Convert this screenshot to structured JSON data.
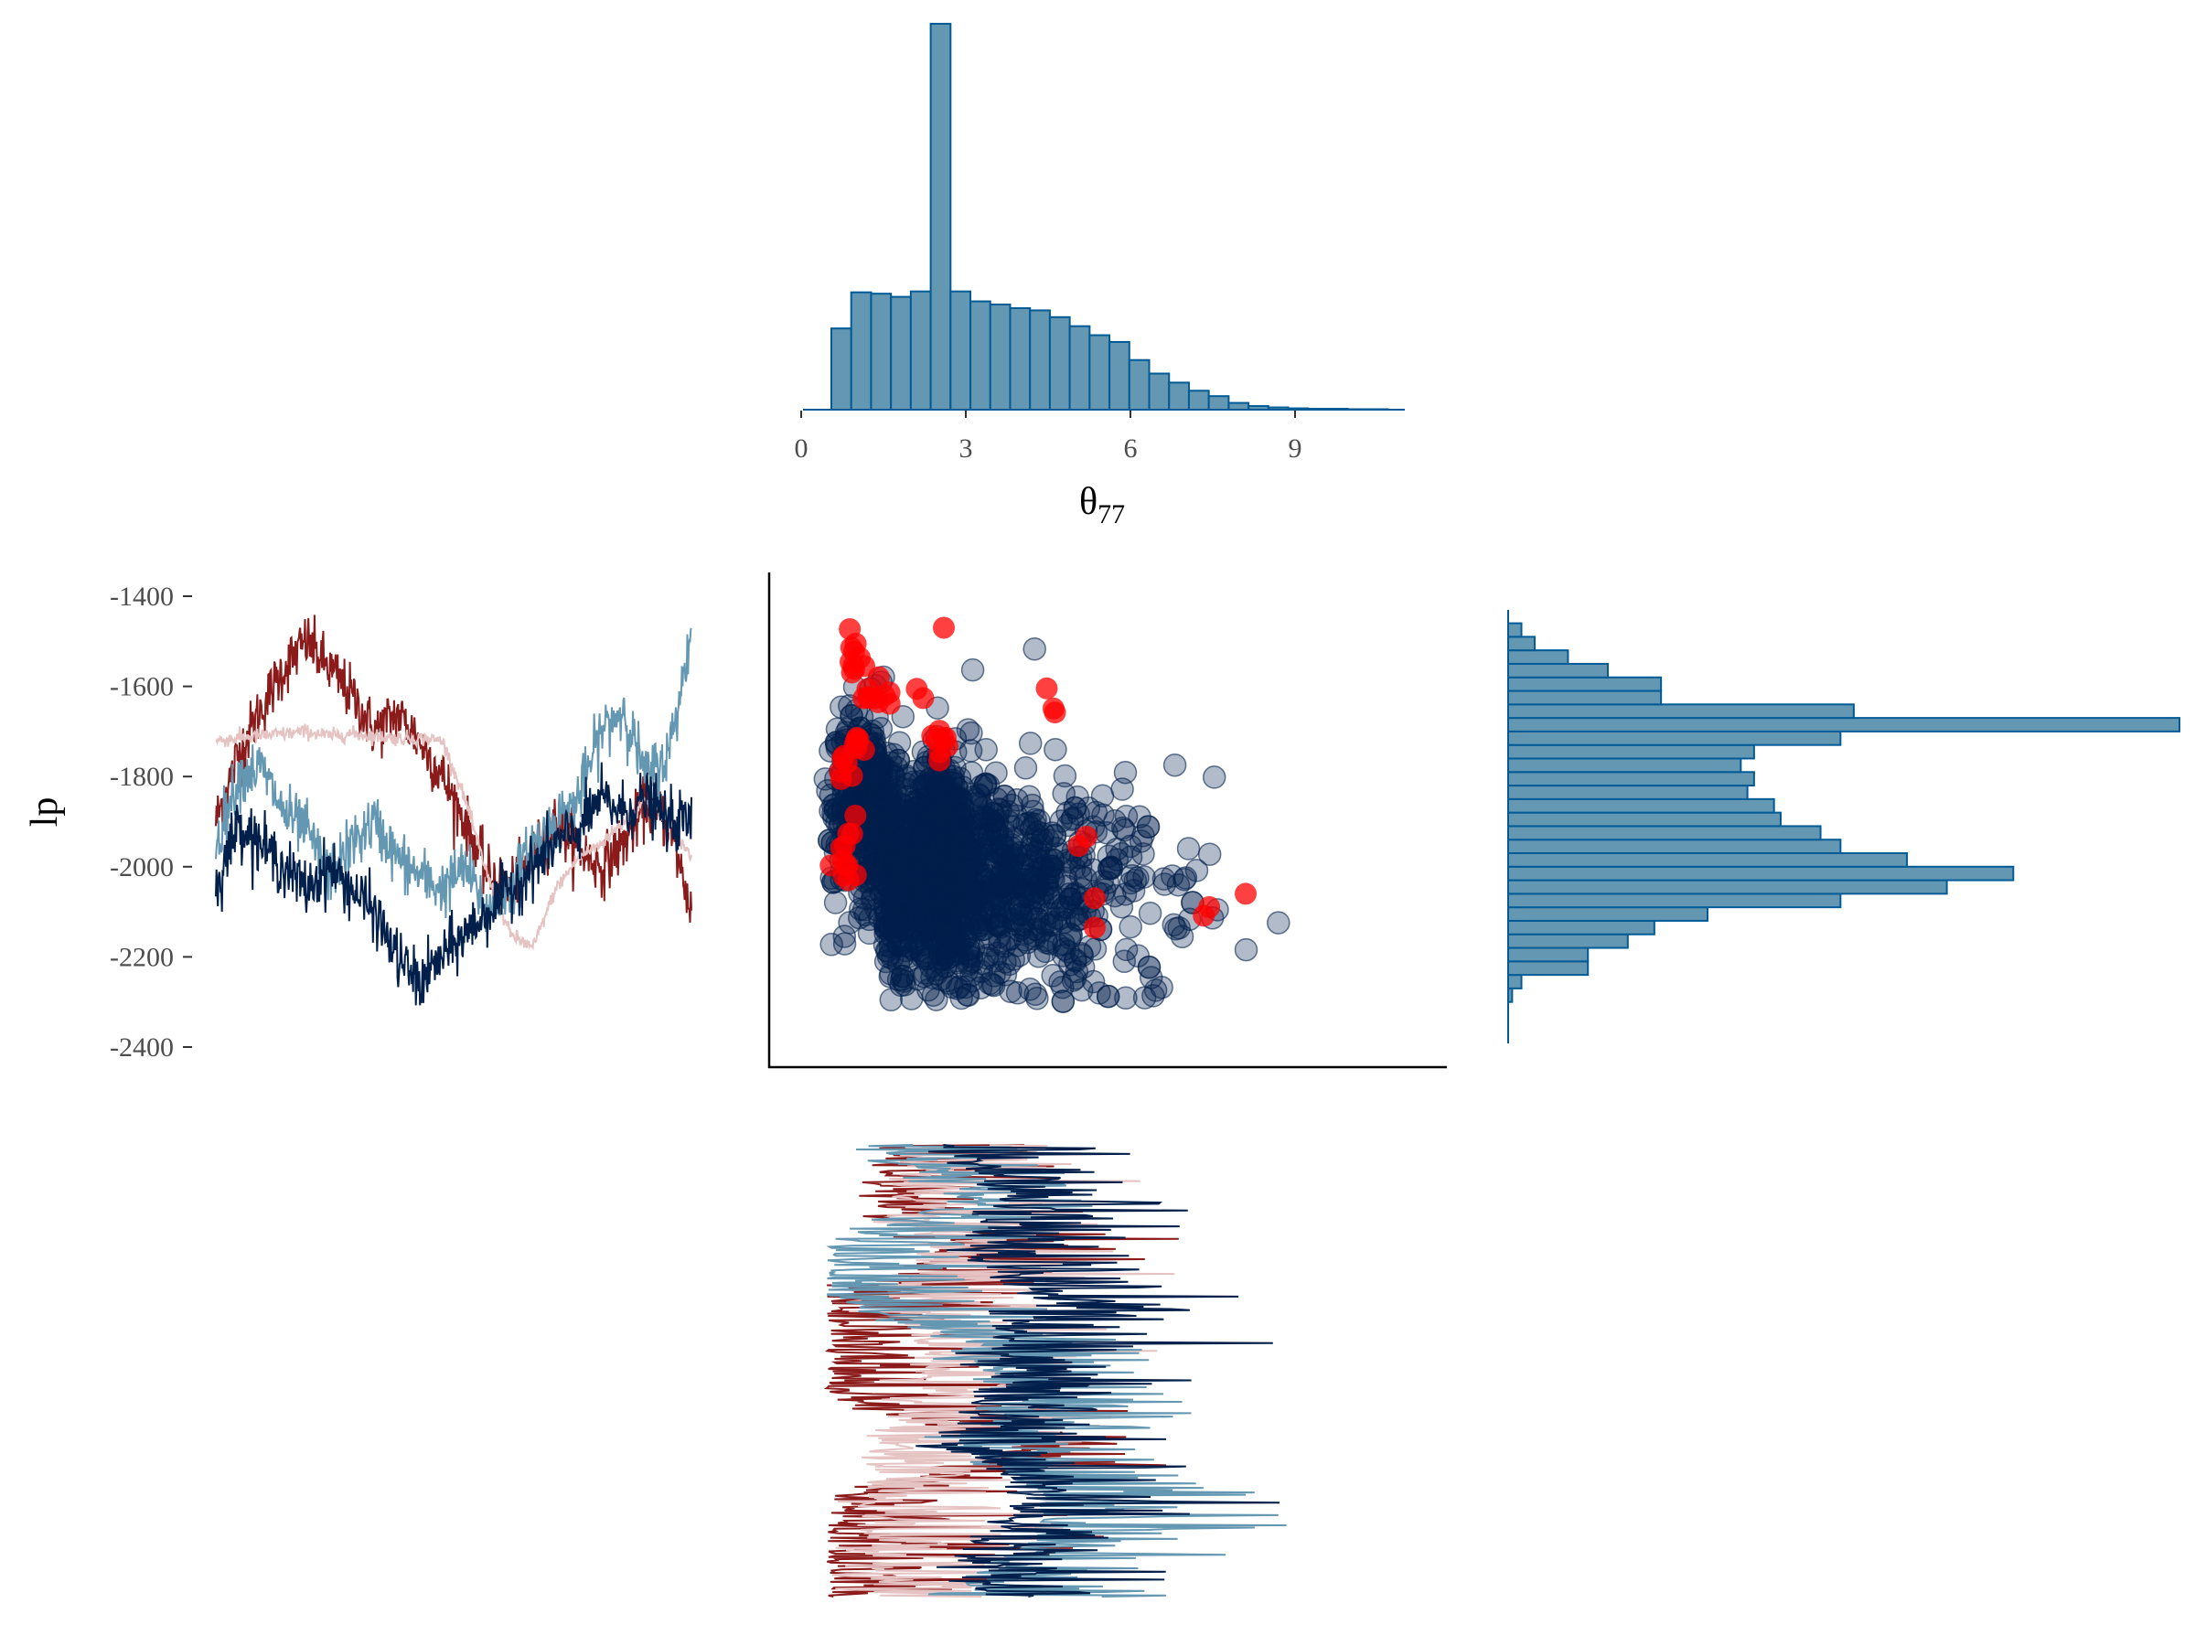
{
  "colors": {
    "hist_fill": "#6497b1",
    "hist_stroke": "#005b96",
    "scatter_point": "#011f4b",
    "divergent_point": "#ff0000",
    "chain_colors": [
      "#8b1a1a",
      "#e6c3c3",
      "#6497b1",
      "#011f4b"
    ],
    "axis_text": "#4d4d4d"
  },
  "chart_data": [
    {
      "id": "theta-histogram",
      "type": "bar",
      "xlabel_main": "θ",
      "xlabel_sub": "77",
      "xticks": [
        "0",
        "3",
        "6",
        "9"
      ],
      "xtick_values": [
        0,
        3,
        6,
        9
      ],
      "xlim": [
        0,
        10.8
      ],
      "bin_width": 0.362,
      "bin_start": 0.55,
      "values": [
        180,
        260,
        257,
        250,
        262,
        855,
        262,
        240,
        233,
        225,
        220,
        205,
        185,
        165,
        150,
        110,
        80,
        60,
        42,
        30,
        15,
        8,
        5,
        3,
        2,
        2,
        1,
        1
      ],
      "grid": false
    },
    {
      "id": "lp-trace",
      "type": "line",
      "ylabel": "lp",
      "yticks": [
        "-1400",
        "-1600",
        "-1800",
        "-2000",
        "-2200",
        "-2400"
      ],
      "ytick_values": [
        -1400,
        -1600,
        -1800,
        -2000,
        -2200,
        -2400
      ],
      "ylim": [
        -2420,
        -1380
      ],
      "n_iterations": 1000,
      "chain_anchors": [
        [
          -1900,
          -1750,
          -1650,
          -1560,
          -1500,
          -1560,
          -1620,
          -1700,
          -1660,
          -1720,
          -1800,
          -1900,
          -2020,
          -2050,
          -1980,
          -1900,
          -1960,
          -2000,
          -1950,
          -1860,
          -1900,
          -2100
        ],
        [
          -1720,
          -1715,
          -1710,
          -1705,
          -1700,
          -1710,
          -1705,
          -1710,
          -1715,
          -1715,
          -1720,
          -1850,
          -2020,
          -2150,
          -2180,
          -2050,
          -1980,
          -1950,
          -1900,
          -1850,
          -1900,
          -1980
        ],
        [
          -1950,
          -1800,
          -1780,
          -1880,
          -1920,
          -2020,
          -1950,
          -1900,
          -1980,
          -2020,
          -2050,
          -2000,
          -2100,
          -2050,
          -1950,
          -1900,
          -1850,
          -1700,
          -1650,
          -1800,
          -1750,
          -1480
        ],
        [
          -2050,
          -1900,
          -1950,
          -2000,
          -2050,
          -2000,
          -2050,
          -2100,
          -2200,
          -2260,
          -2200,
          -2150,
          -2100,
          -2050,
          -2000,
          -1950,
          -1920,
          -1850,
          -1880,
          -1850,
          -1900,
          -1900
        ]
      ]
    },
    {
      "id": "lp-theta-scatter",
      "type": "scatter",
      "x_range": [
        0.25,
        10.5
      ],
      "y_range": [
        -2300,
        -1470
      ],
      "xlim": [
        -0.4,
        10.8
      ],
      "ylim": [
        -2420,
        -1380
      ],
      "divergent_clusters": [
        {
          "x": 0.95,
          "y": -1500,
          "n": 3
        },
        {
          "x": 1.0,
          "y": -1550,
          "n": 6
        },
        {
          "x": 1.25,
          "y": -1600,
          "n": 8
        },
        {
          "x": 1.0,
          "y": -1720,
          "n": 6
        },
        {
          "x": 0.8,
          "y": -1770,
          "n": 6
        },
        {
          "x": 2.55,
          "y": -1730,
          "n": 8
        },
        {
          "x": 1.5,
          "y": -1640,
          "n": 3
        },
        {
          "x": 2.2,
          "y": -1610,
          "n": 2
        },
        {
          "x": 2.6,
          "y": -1470,
          "n": 1
        },
        {
          "x": 4.55,
          "y": -1635,
          "n": 3
        },
        {
          "x": 0.9,
          "y": -1930,
          "n": 4
        },
        {
          "x": 0.75,
          "y": -1990,
          "n": 6
        },
        {
          "x": 1.0,
          "y": -2025,
          "n": 2
        },
        {
          "x": 5.05,
          "y": -1945,
          "n": 2
        },
        {
          "x": 5.35,
          "y": -2070,
          "n": 1
        },
        {
          "x": 5.35,
          "y": -2135,
          "n": 1
        },
        {
          "x": 7.3,
          "y": -2080,
          "n": 2
        },
        {
          "x": 8.1,
          "y": -2060,
          "n": 1
        }
      ]
    },
    {
      "id": "lp-histogram",
      "type": "bar",
      "orientation": "horizontal",
      "bin_start": -2300,
      "bin_width": 30,
      "values": [
        3,
        10,
        60,
        60,
        90,
        110,
        150,
        250,
        330,
        380,
        300,
        250,
        235,
        205,
        200,
        180,
        185,
        175,
        185,
        250,
        505,
        260,
        115,
        115,
        75,
        45,
        20,
        10
      ]
    },
    {
      "id": "theta-trace",
      "type": "line",
      "orientation": "vertical",
      "n_iterations": 1000
    }
  ]
}
